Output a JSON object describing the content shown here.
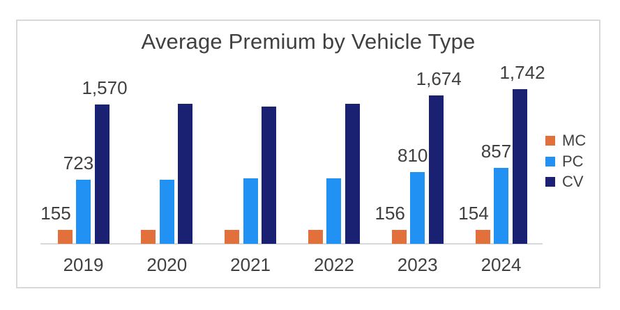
{
  "chart_data": {
    "type": "bar",
    "title": "Average Premium by Vehicle Type",
    "categories": [
      "2019",
      "2020",
      "2021",
      "2022",
      "2023",
      "2024"
    ],
    "series": [
      {
        "name": "MC",
        "color": "#E2703B",
        "values": [
          155,
          155,
          155,
          155,
          156,
          154
        ]
      },
      {
        "name": "PC",
        "color": "#2191F3",
        "values": [
          723,
          725,
          735,
          740,
          810,
          857
        ]
      },
      {
        "name": "CV",
        "color": "#1A2173",
        "values": [
          1570,
          1575,
          1545,
          1575,
          1674,
          1742
        ]
      }
    ],
    "estimated_categories": [
      "2020",
      "2021",
      "2022"
    ],
    "data_labels": [
      {
        "category": "2019",
        "series": "MC",
        "text": "155"
      },
      {
        "category": "2019",
        "series": "PC",
        "text": "723"
      },
      {
        "category": "2019",
        "series": "CV",
        "text": "1,570"
      },
      {
        "category": "2023",
        "series": "MC",
        "text": "156"
      },
      {
        "category": "2023",
        "series": "PC",
        "text": "810"
      },
      {
        "category": "2023",
        "series": "CV",
        "text": "1,674"
      },
      {
        "category": "2024",
        "series": "MC",
        "text": "154"
      },
      {
        "category": "2024",
        "series": "PC",
        "text": "857"
      },
      {
        "category": "2024",
        "series": "CV",
        "text": "1,742"
      }
    ],
    "legend": {
      "position": "right",
      "entries": [
        "MC",
        "PC",
        "CV"
      ]
    },
    "ylim": [
      0,
      2000
    ],
    "grid": false,
    "xlabel": "",
    "ylabel": ""
  },
  "colors": {
    "text": "#404040",
    "axis_line": "#D9D9D9",
    "frame_border": "#D9D9D9",
    "background": "#FFFFFF"
  }
}
